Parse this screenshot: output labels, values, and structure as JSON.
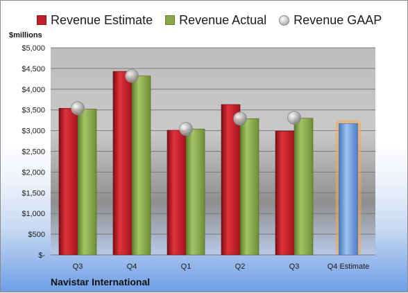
{
  "legend": {
    "estimate": "Revenue Estimate",
    "actual": "Revenue Actual",
    "gaap": "Revenue GAAP"
  },
  "unit_label": "$millions",
  "company": "Navistar International",
  "colors": {
    "estimate": "#c0202a",
    "actual": "#8aa84a",
    "gaap": "#b8b8b8",
    "future": "#6f9fd8",
    "future_glow": "#f2a65a"
  },
  "chart_data": {
    "type": "bar",
    "categories": [
      "Q3",
      "Q4",
      "Q1",
      "Q2",
      "Q3",
      "Q4 Estimate"
    ],
    "series": [
      {
        "name": "Revenue Estimate",
        "values": [
          3540,
          4430,
          3010,
          3630,
          2990,
          3170
        ]
      },
      {
        "name": "Revenue Actual",
        "values": [
          3520,
          4320,
          3040,
          3290,
          3300,
          null
        ]
      },
      {
        "name": "Revenue GAAP",
        "values": [
          3540,
          4320,
          3040,
          3290,
          3310,
          null
        ]
      }
    ],
    "ylim": [
      0,
      5000
    ],
    "yticks": [
      {
        "value": 0,
        "label": "$-"
      },
      {
        "value": 500,
        "label": "$500"
      },
      {
        "value": 1000,
        "label": "$1,000"
      },
      {
        "value": 1500,
        "label": "$1,500"
      },
      {
        "value": 2000,
        "label": "$2,000"
      },
      {
        "value": 2500,
        "label": "$2,500"
      },
      {
        "value": 3000,
        "label": "$3,000"
      },
      {
        "value": 3500,
        "label": "$3,500"
      },
      {
        "value": 4000,
        "label": "$4,000"
      },
      {
        "value": 4500,
        "label": "$4,500"
      },
      {
        "value": 5000,
        "label": "$5,000"
      }
    ],
    "grid": true,
    "legend_position": "top"
  }
}
